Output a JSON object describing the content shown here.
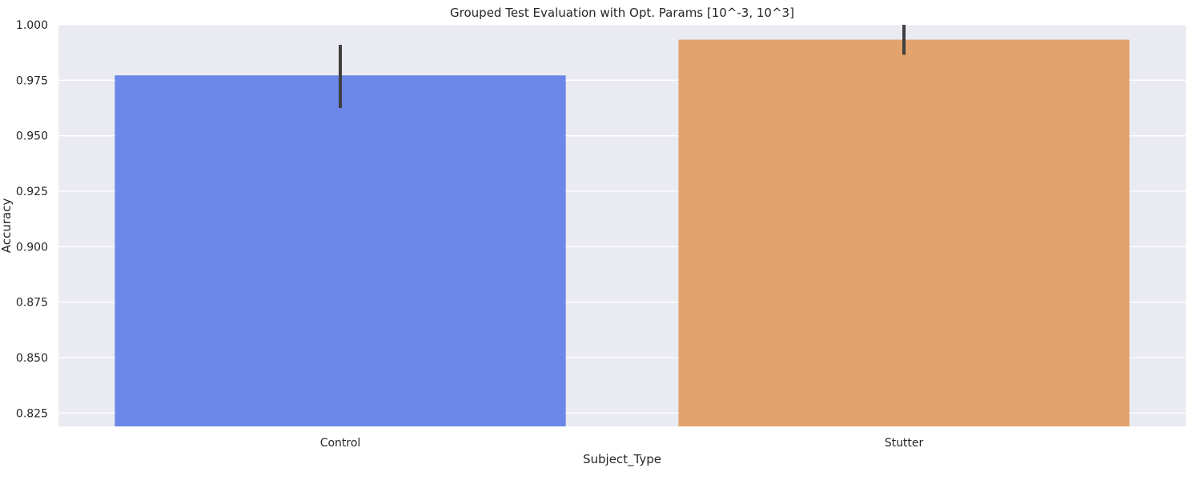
{
  "chart_data": {
    "type": "bar",
    "title": "Grouped Test Evaluation with Opt. Params [10^-3, 10^3]",
    "xlabel": "Subject_Type",
    "ylabel": "Accuracy",
    "categories": [
      "Control",
      "Stutter"
    ],
    "values": [
      0.9772,
      0.9933
    ],
    "error_bars": [
      {
        "low": 0.9625,
        "high": 0.991
      },
      {
        "low": 0.9865,
        "high": 1.0
      }
    ],
    "bar_colors": [
      "#6b87e8",
      "#e3a36c"
    ],
    "error_bar_color": "#3f3f3f",
    "ylim": [
      0.819,
      1.0
    ],
    "yticks": [
      0.825,
      0.85,
      0.875,
      0.9,
      0.925,
      0.95,
      0.975,
      1.0
    ],
    "ytick_labels": [
      "0.825",
      "0.850",
      "0.875",
      "0.900",
      "0.925",
      "0.950",
      "0.975",
      "1.000"
    ],
    "grid": true,
    "background_color": "#eaeaf2",
    "grid_color": "#ffffff"
  }
}
